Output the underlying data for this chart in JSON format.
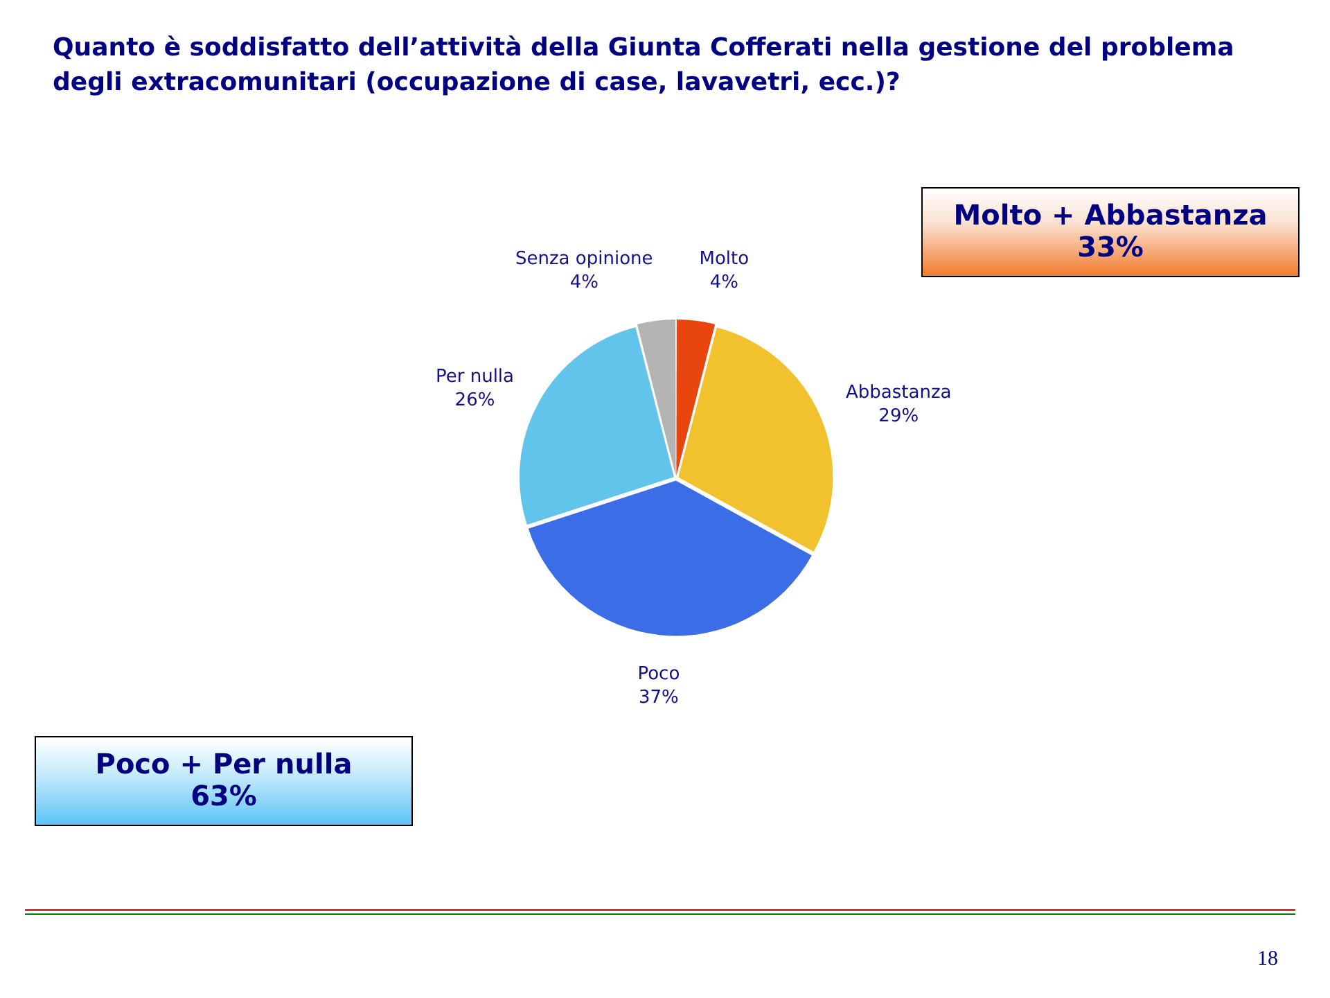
{
  "chart_data": {
    "type": "pie",
    "title": "Quanto è soddisfatto dell’attività della Giunta Cofferati nella gestione del problema degli extracomunitari (occupazione di case, lavavetri, ecc.)?",
    "categories": [
      "Molto",
      "Abbastanza",
      "Poco",
      "Per nulla",
      "Senza opinione"
    ],
    "values": [
      4,
      29,
      37,
      26,
      4
    ],
    "colors": [
      "#e8460e",
      "#f2c12e",
      "#3b6ee6",
      "#62c4ea",
      "#b4b4b4"
    ],
    "value_labels": [
      "4%",
      "29%",
      "37%",
      "26%",
      "4%"
    ],
    "annotations": [
      "Molto + Abbastanza\n33%",
      "Poco + Per nulla\n63%",
      "18"
    ]
  }
}
